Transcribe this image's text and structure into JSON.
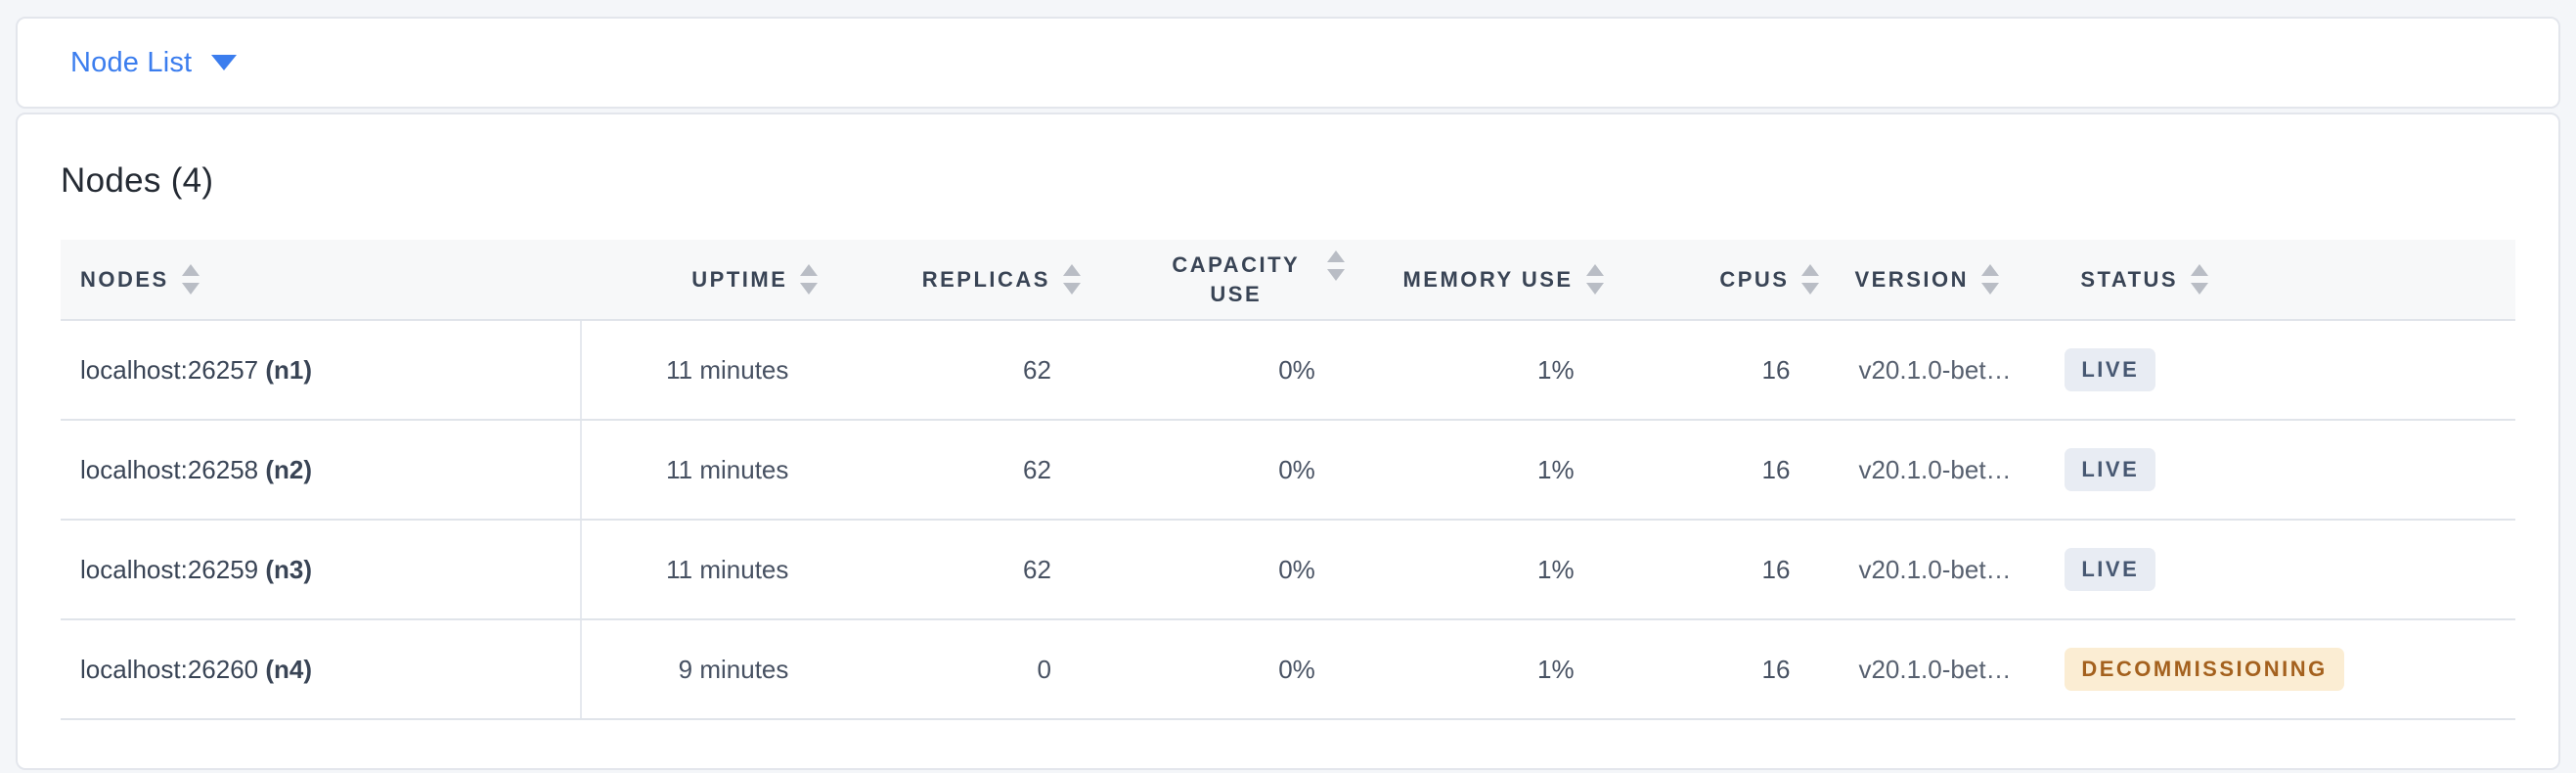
{
  "topbar": {
    "dropdown_label": "Node List"
  },
  "main": {
    "title": "Nodes (4)"
  },
  "table": {
    "columns": {
      "nodes": "Nodes",
      "uptime": "Uptime",
      "replicas": "Replicas",
      "capacity_use": "Capacity Use",
      "memory_use": "Memory Use",
      "cpus": "CPUs",
      "version": "Version",
      "status": "Status"
    },
    "rows": [
      {
        "address": "localhost:26257",
        "name": "(n1)",
        "uptime": "11 minutes",
        "replicas": "62",
        "capacity_use": "0%",
        "memory_use": "1%",
        "cpus": "16",
        "version": "v20.1.0-bet…",
        "status": "LIVE"
      },
      {
        "address": "localhost:26258",
        "name": "(n2)",
        "uptime": "11 minutes",
        "replicas": "62",
        "capacity_use": "0%",
        "memory_use": "1%",
        "cpus": "16",
        "version": "v20.1.0-bet…",
        "status": "LIVE"
      },
      {
        "address": "localhost:26259",
        "name": "(n3)",
        "uptime": "11 minutes",
        "replicas": "62",
        "capacity_use": "0%",
        "memory_use": "1%",
        "cpus": "16",
        "version": "v20.1.0-bet…",
        "status": "LIVE"
      },
      {
        "address": "localhost:26260",
        "name": "(n4)",
        "uptime": "9 minutes",
        "replicas": "0",
        "capacity_use": "0%",
        "memory_use": "1%",
        "cpus": "16",
        "version": "v20.1.0-bet…",
        "status": "DECOMMISSIONING"
      }
    ]
  },
  "colors": {
    "accent_blue": "#3b7dee",
    "live_badge_bg": "#e8ecf3",
    "live_badge_text": "#475872",
    "decommissioning_badge_bg": "#fbedd3",
    "decommissioning_badge_text": "#a4611e"
  }
}
